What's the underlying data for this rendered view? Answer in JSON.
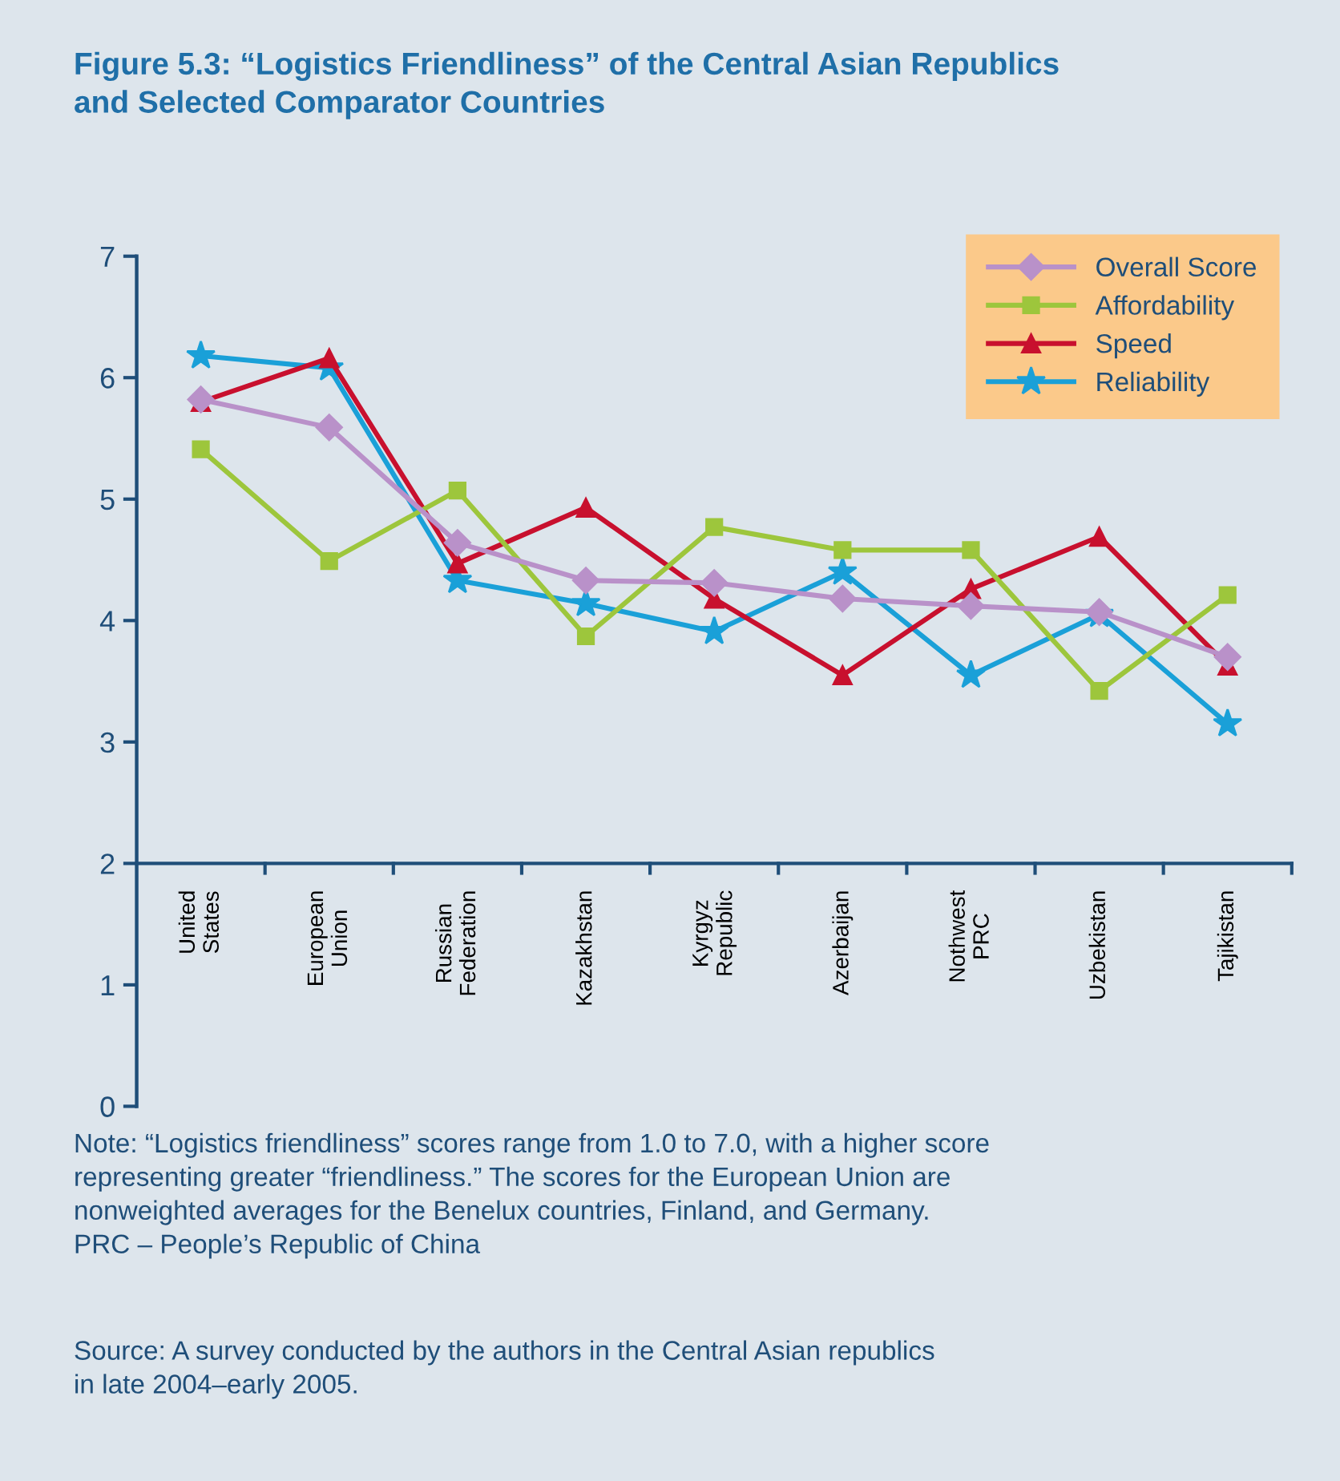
{
  "chart_data": {
    "type": "line",
    "title": "Figure 5.3: “Logistics Friendliness” of the Central Asian Republics\nand Selected Comparator Countries",
    "categories": [
      "United\nStates",
      "European\nUnion",
      "Russian\nFederation",
      "Kazakhstan",
      "Kyrgyz\nRepublic",
      "Azerbaijan",
      "Nothwest\nPRC",
      "Uzbekistan",
      "Tajikistan"
    ],
    "series": [
      {
        "name": "Overall Score",
        "color": "#b991c9",
        "marker": "diamond",
        "values": [
          5.82,
          5.59,
          4.64,
          4.33,
          4.31,
          4.18,
          4.12,
          4.07,
          3.7
        ]
      },
      {
        "name": "Affordability",
        "color": "#9dc63c",
        "marker": "square",
        "values": [
          5.41,
          4.49,
          5.07,
          3.87,
          4.77,
          4.58,
          4.58,
          3.42,
          4.21
        ]
      },
      {
        "name": "Speed",
        "color": "#c8102e",
        "marker": "triangle",
        "values": [
          5.8,
          6.16,
          4.47,
          4.93,
          4.18,
          3.55,
          4.26,
          4.69,
          3.63
        ]
      },
      {
        "name": "Reliability",
        "color": "#1aa0d8",
        "marker": "star",
        "values": [
          6.18,
          6.08,
          4.33,
          4.14,
          3.91,
          4.4,
          3.55,
          4.05,
          3.15
        ]
      }
    ],
    "ylim": [
      0,
      7
    ],
    "yticks": [
      0,
      1,
      2,
      3,
      4,
      5,
      6,
      7
    ],
    "grid": false,
    "legend": "top right",
    "line_style": "solid",
    "annotations": [
      "Note: “Logistics friendliness” scores range from 1.0 to 7.0, with a higher score\nrepresenting greater “friendliness.” The scores for the European Union are\nnonweighted averages for the Benelux countries, Finland, and Germany.\nPRC – People’s Republic of China",
      "Source: A survey conducted by the authors in the Central Asian republics\nin late 2004–early 2005."
    ]
  }
}
